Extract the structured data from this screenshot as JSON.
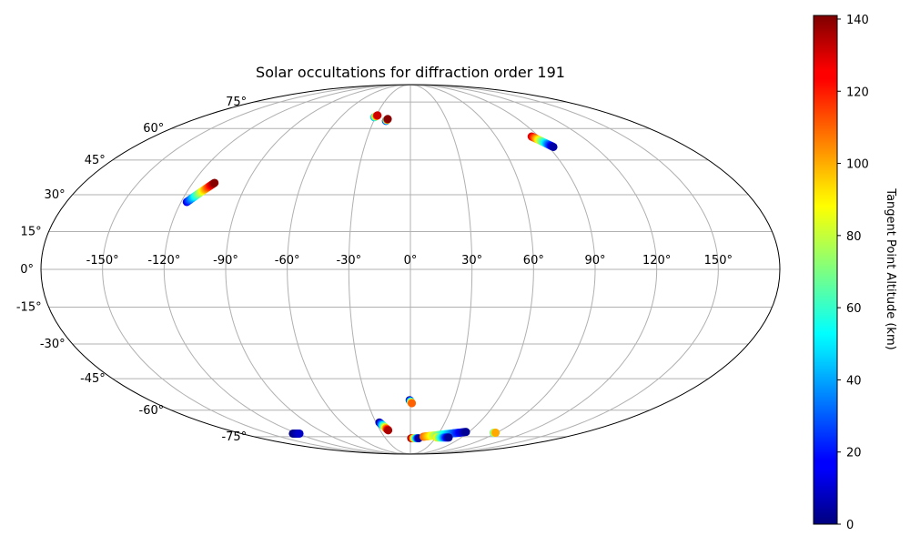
{
  "chart_data": {
    "type": "scatter",
    "projection": "mollweide",
    "title": "Solar occultations for diffraction order 191",
    "grid": true,
    "lon_ticks": [
      "-150°",
      "-120°",
      "-90°",
      "-60°",
      "-30°",
      "0°",
      "30°",
      "60°",
      "90°",
      "120°",
      "150°"
    ],
    "lat_ticks": [
      "75°",
      "60°",
      "45°",
      "30°",
      "15°",
      "0°",
      "-15°",
      "-30°",
      "-45°",
      "-60°",
      "-75°"
    ],
    "colorbar": {
      "label": "Tangent Point Altitude (km)",
      "colormap": "jet",
      "range": [
        0,
        141
      ],
      "ticks": [
        "0",
        "20",
        "40",
        "60",
        "80",
        "100",
        "120",
        "140"
      ]
    },
    "tracks": [
      {
        "lon_start": -117,
        "lat_start": 27,
        "lon_end": -108,
        "lat_end": 35,
        "alt_start": 15,
        "alt_end": 140
      },
      {
        "lon_start": -31,
        "lat_start": 66,
        "lon_end": -29,
        "lat_end": 67,
        "alt_start": 40,
        "alt_end": 130
      },
      {
        "lon_start": -20,
        "lat_start": 64,
        "lon_end": -19,
        "lat_end": 65,
        "alt_start": 15,
        "alt_end": 140
      },
      {
        "lon_start": 85,
        "lat_start": 56,
        "lon_end": 93,
        "lat_end": 51,
        "alt_start": 130,
        "alt_end": 5
      },
      {
        "lon_start": -0.5,
        "lat_start": -55,
        "lon_end": 1,
        "lat_end": -56.5,
        "alt_start": 2,
        "alt_end": 110
      },
      {
        "lon_start": -27,
        "lat_start": -66.5,
        "lon_end": -22,
        "lat_end": -71,
        "alt_start": 2,
        "alt_end": 135
      },
      {
        "lon_start": -125,
        "lat_start": -73,
        "lon_end": -118,
        "lat_end": -73,
        "alt_start": 0,
        "alt_end": 10
      },
      {
        "lon_start": 1,
        "lat_start": -76,
        "lon_end": 10,
        "lat_end": -76,
        "alt_start": 140,
        "alt_end": 5
      },
      {
        "lon_start": 15,
        "lat_start": -75,
        "lon_end": 57,
        "lat_end": -72,
        "alt_start": 110,
        "alt_end": 3
      },
      {
        "lon_start": 31,
        "lat_start": -75.5,
        "lon_end": 45,
        "lat_end": -75.5,
        "alt_start": 90,
        "alt_end": 3
      },
      {
        "lon_start": 87,
        "lat_start": -72.5,
        "lon_end": 89,
        "lat_end": -72.5,
        "alt_start": 60,
        "alt_end": 100
      }
    ]
  }
}
